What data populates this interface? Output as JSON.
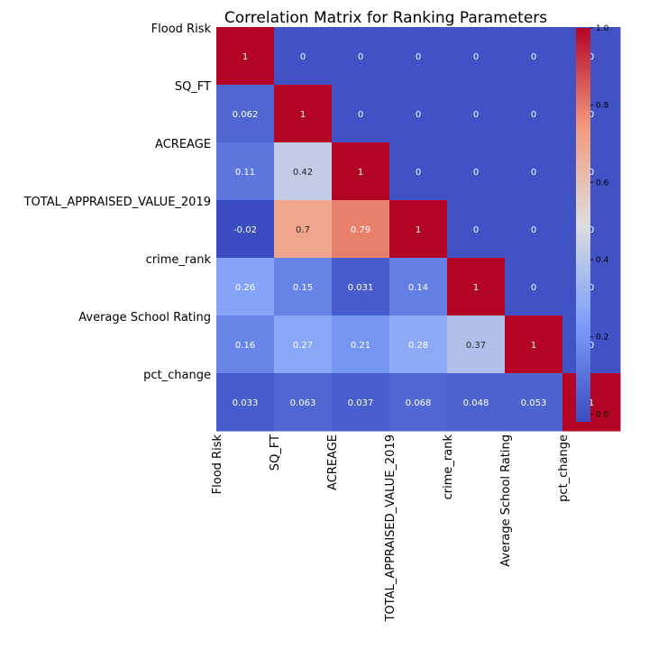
{
  "chart_data": {
    "type": "heatmap",
    "title": "Correlation Matrix for Ranking Parameters",
    "labels": [
      "Flood Risk",
      "SQ_FT",
      "ACREAGE",
      "TOTAL_APPRAISED_VALUE_2019",
      "crime_rank",
      "Average School Rating",
      "pct_change"
    ],
    "values": [
      [
        1,
        0,
        0,
        0,
        0,
        0,
        0
      ],
      [
        0.062,
        1,
        0,
        0,
        0,
        0,
        0
      ],
      [
        0.11,
        0.42,
        1,
        0,
        0,
        0,
        0
      ],
      [
        -0.02,
        0.7,
        0.79,
        1,
        0,
        0,
        0
      ],
      [
        0.26,
        0.15,
        0.031,
        0.14,
        1,
        0,
        0
      ],
      [
        0.16,
        0.27,
        0.21,
        0.28,
        0.37,
        1,
        0
      ],
      [
        0.033,
        0.063,
        0.037,
        0.068,
        0.048,
        0.053,
        1
      ]
    ],
    "cell_labels": [
      [
        "1",
        "0",
        "0",
        "0",
        "0",
        "0",
        "0"
      ],
      [
        "0.062",
        "1",
        "0",
        "0",
        "0",
        "0",
        "0"
      ],
      [
        "0.11",
        "0.42",
        "1",
        "0",
        "0",
        "0",
        "0"
      ],
      [
        "-0.02",
        "0.7",
        "0.79",
        "1",
        "0",
        "0",
        "0"
      ],
      [
        "0.26",
        "0.15",
        "0.031",
        "0.14",
        "1",
        "0",
        "0"
      ],
      [
        "0.16",
        "0.27",
        "0.21",
        "0.28",
        "0.37",
        "1",
        "0"
      ],
      [
        "0.033",
        "0.063",
        "0.037",
        "0.068",
        "0.048",
        "0.053",
        "1"
      ]
    ],
    "colormap": "coolwarm",
    "vmin": -0.02,
    "vmax": 1,
    "colorbar": {
      "ticks": [
        0.0,
        0.2,
        0.4,
        0.6,
        0.8,
        1.0
      ],
      "tick_labels": [
        "0.0",
        "0.2",
        "0.4",
        "0.6",
        "0.8",
        "1.0"
      ],
      "placement": "right"
    },
    "colors": {
      "low": "#3b4cc0",
      "mid": "#dddddd",
      "high": "#b40426"
    }
  }
}
